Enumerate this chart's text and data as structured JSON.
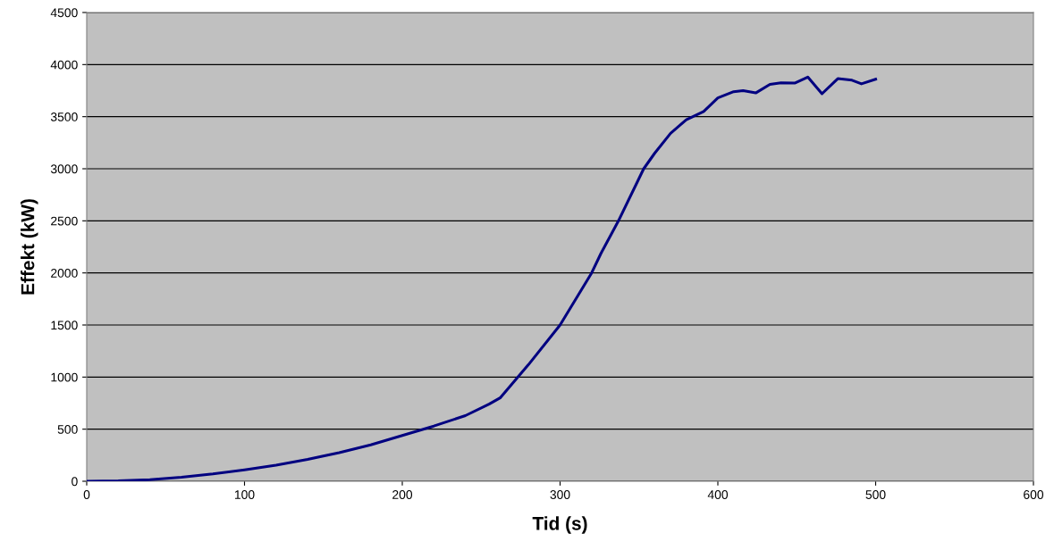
{
  "chart_data": {
    "type": "line",
    "xlabel": "Tid (s)",
    "ylabel": "Effekt (kW)",
    "x": [
      0,
      20,
      40,
      60,
      80,
      100,
      120,
      140,
      160,
      180,
      200,
      220,
      240,
      255,
      262,
      280,
      300,
      320,
      326,
      337,
      353,
      360,
      370,
      380,
      391,
      400,
      410,
      416,
      424,
      433,
      440,
      449,
      457,
      466,
      476,
      485,
      491,
      500
    ],
    "series": [
      {
        "color": "#000080",
        "values": [
          0,
          3,
          15,
          38,
          70,
          110,
          155,
          210,
          275,
          350,
          440,
          530,
          630,
          740,
          800,
          1120,
          1500,
          2000,
          2190,
          2500,
          3000,
          3150,
          3340,
          3470,
          3550,
          3680,
          3740,
          3750,
          3728,
          3810,
          3825,
          3823,
          3880,
          3720,
          3865,
          3850,
          3815,
          3860
        ]
      }
    ],
    "xlim": [
      0,
      600
    ],
    "xticks": [
      0,
      100,
      200,
      300,
      400,
      500,
      600
    ],
    "ylim": [
      0,
      4500
    ],
    "yticks": [
      0,
      500,
      1000,
      1500,
      2000,
      2500,
      3000,
      3500,
      4000,
      4500
    ],
    "grid": "y",
    "legend": false,
    "marker": "none",
    "line_style": "solid"
  }
}
